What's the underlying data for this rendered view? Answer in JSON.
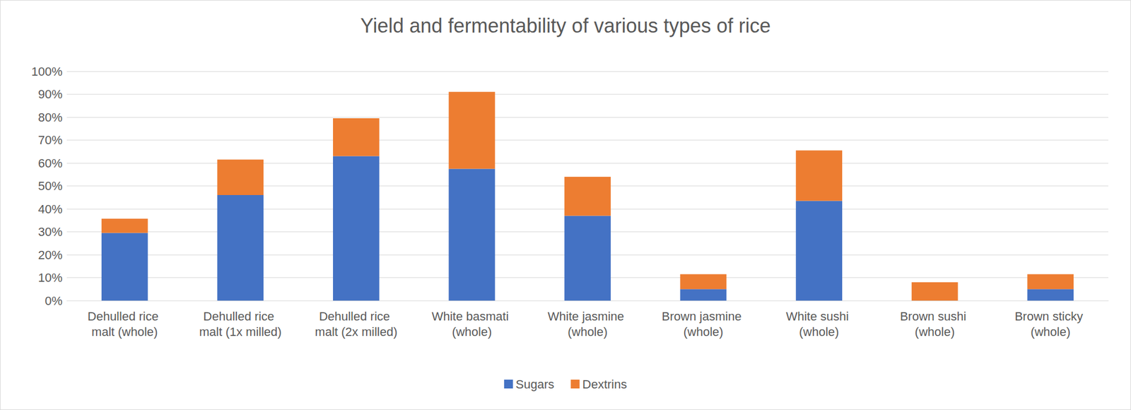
{
  "chart_data": {
    "type": "bar",
    "title": "Yield and fermentability of various types of rice",
    "categories": [
      "Dehulled rice malt (whole)",
      "Dehulled rice malt (1x milled)",
      "Dehulled rice malt (2x milled)",
      "White basmati (whole)",
      "White jasmine (whole)",
      "Brown jasmine (whole)",
      "White sushi (whole)",
      "Brown sushi (whole)",
      "Brown sticky (whole)"
    ],
    "series": [
      {
        "name": "Sugars",
        "color": "#4472c4",
        "values": [
          29.5,
          46,
          63,
          57.5,
          37,
          5,
          43.5,
          0,
          5
        ]
      },
      {
        "name": "Dextrins",
        "color": "#ed7d31",
        "values": [
          6.2,
          15.5,
          16.5,
          33.5,
          17,
          6.5,
          22,
          8,
          6.5
        ]
      }
    ],
    "stacked": true,
    "ylim": [
      0,
      100
    ],
    "yticks": [
      {
        "value": 0,
        "label": "0%"
      },
      {
        "value": 10,
        "label": "10%"
      },
      {
        "value": 20,
        "label": "20%"
      },
      {
        "value": 30,
        "label": "30%"
      },
      {
        "value": 40,
        "label": "40%"
      },
      {
        "value": 50,
        "label": "50%"
      },
      {
        "value": 60,
        "label": "60%"
      },
      {
        "value": 70,
        "label": "70%"
      },
      {
        "value": 80,
        "label": "80%"
      },
      {
        "value": 90,
        "label": "90%"
      },
      {
        "value": 100,
        "label": "100%"
      }
    ],
    "grid": true,
    "legend": "bottom"
  }
}
